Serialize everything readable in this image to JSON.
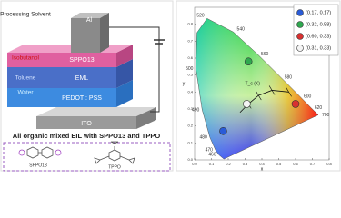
{
  "device": {
    "solvent_title": "Processing Solvent",
    "solvents": [
      "Isobutanol",
      "Toluene",
      "Water"
    ],
    "layers": [
      "Al",
      "SPPO13",
      "EML",
      "PEDOT : PSS",
      "ITO"
    ]
  },
  "caption": "All organic mixed EIL with SPPO13 and TPPO",
  "molecules": [
    "SPPO13",
    "TPPO"
  ],
  "cie": {
    "xlabel": "x",
    "ylabel": "y",
    "tc_label": "T_c (K)",
    "xticks": [
      {
        "value": 0,
        "label": "0.0"
      },
      {
        "value": 0.1,
        "label": "0.1"
      },
      {
        "value": 0.2,
        "label": "0.2"
      },
      {
        "value": 0.3,
        "label": "0.3"
      },
      {
        "value": 0.4,
        "label": "0.4"
      },
      {
        "value": 0.5,
        "label": "0.5"
      },
      {
        "value": 0.6,
        "label": "0.6"
      },
      {
        "value": 0.7,
        "label": "0.7"
      },
      {
        "value": 0.8,
        "label": "0.8"
      }
    ],
    "yticks": [
      {
        "value": 0,
        "label": "0.0"
      },
      {
        "value": 0.1,
        "label": "0.1"
      },
      {
        "value": 0.2,
        "label": "0.2"
      },
      {
        "value": 0.3,
        "label": "0.3"
      },
      {
        "value": 0.4,
        "label": "0.4"
      },
      {
        "value": 0.5,
        "label": "0.5"
      },
      {
        "value": 0.6,
        "label": "0.6"
      },
      {
        "value": 0.7,
        "label": "0.7"
      },
      {
        "value": 0.8,
        "label": "0.8"
      }
    ],
    "xlim": [
      0,
      0.8
    ],
    "ylim": [
      0,
      0.9
    ],
    "wavelengths": [
      "460",
      "470",
      "480",
      "490",
      "500",
      "520",
      "540",
      "560",
      "580",
      "600",
      "620",
      "700"
    ],
    "points": [
      {
        "label": "(0.17, 0.17)",
        "x": 0.17,
        "y": 0.17,
        "color": "#2a5bd7"
      },
      {
        "label": "(0.32, 0.58)",
        "x": 0.32,
        "y": 0.58,
        "color": "#2fa84f"
      },
      {
        "label": "(0.60, 0.33)",
        "x": 0.6,
        "y": 0.33,
        "color": "#d93030"
      },
      {
        "label": "(0.31, 0.33)",
        "x": 0.31,
        "y": 0.33,
        "color": "#f4f4f4"
      }
    ]
  }
}
